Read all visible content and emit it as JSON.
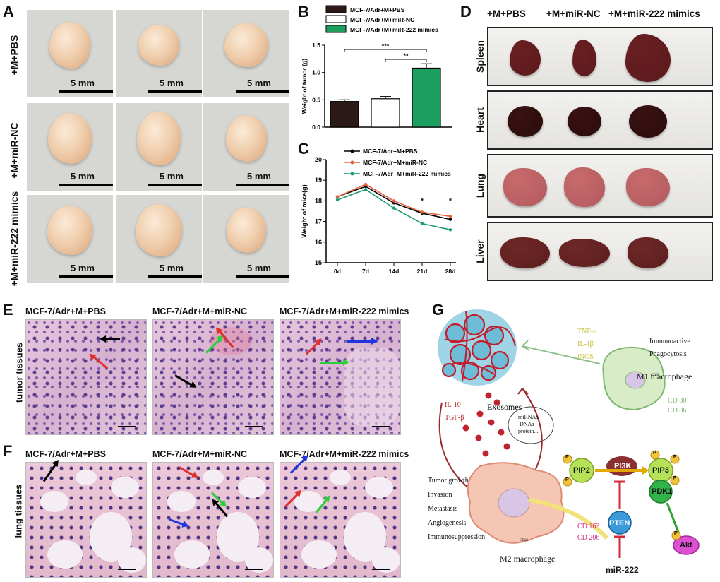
{
  "panels": {
    "a": "A",
    "b": "B",
    "c": "C",
    "d": "D",
    "e": "E",
    "f": "F",
    "g": "G"
  },
  "panel_a": {
    "rows": [
      "+M+PBS",
      "+M+miR-NC",
      "+M+miR-222 mimics"
    ],
    "scale_label": "5 mm"
  },
  "panel_b": {
    "chart_data": {
      "type": "bar",
      "categories": [
        "MCF-7/Adr+M+PBS",
        "MCF-7/Adr+M+miR-NC",
        "MCF-7/Adr+M+miR-222 mimics"
      ],
      "values": [
        0.47,
        0.52,
        1.08
      ],
      "errors": [
        0.03,
        0.04,
        0.08
      ],
      "colors": [
        "#2b1a17",
        "#ffffff",
        "#1b9e5e"
      ],
      "ylabel": "Weight of tumor (g)",
      "ylim": [
        0,
        1.5
      ],
      "yticks": [
        "0.0",
        "0.5",
        "1.0",
        "1.5"
      ],
      "significance": [
        {
          "from": 0,
          "to": 2,
          "label": "***"
        },
        {
          "from": 1,
          "to": 2,
          "label": "**"
        }
      ],
      "legend": [
        "MCF-7/Adr+M+PBS",
        "MCF-7/Adr+M+miR-NC",
        "MCF-7/Adr+M+miR-222 mimics"
      ]
    }
  },
  "panel_c": {
    "chart_data": {
      "type": "line",
      "x": [
        "0d",
        "7d",
        "14d",
        "21d",
        "28d"
      ],
      "series": [
        {
          "name": "MCF-7/Adr+M+PBS",
          "values": [
            18.2,
            18.7,
            17.9,
            17.4,
            17.1
          ],
          "color": "#000000"
        },
        {
          "name": "MCF-7/Adr+M+miR-NC",
          "values": [
            18.2,
            18.8,
            18.0,
            17.45,
            17.25
          ],
          "color": "#e8603c"
        },
        {
          "name": "MCF-7/Adr+M+miR-222 mimics",
          "values": [
            18.05,
            18.55,
            17.65,
            16.9,
            16.6
          ],
          "color": "#1a9e6a"
        }
      ],
      "ylabel": "Weight of mice(g)",
      "ylim": [
        15,
        20
      ],
      "yticks": [
        "15",
        "16",
        "17",
        "18",
        "19",
        "20"
      ],
      "annotations": [
        {
          "x": "21d",
          "label": "*"
        },
        {
          "x": "28d",
          "label": "*"
        }
      ]
    }
  },
  "panel_d": {
    "columns": [
      "+M+PBS",
      "+M+miR-NC",
      "+M+miR-222 mimics"
    ],
    "rows": [
      "Spleen",
      "Heart",
      "Lung",
      "Liver"
    ]
  },
  "panel_e": {
    "row_label": "tumor tissues",
    "titles": [
      "MCF-7/Adr+M+PBS",
      "MCF-7/Adr+M+miR-NC",
      "MCF-7/Adr+M+miR-222 mimics"
    ]
  },
  "panel_f": {
    "row_label": "lung tissues",
    "titles": [
      "MCF-7/Adr+M+PBS",
      "MCF-7/Adr+M+miR-NC",
      "MCF-7/Adr+M+miR-222 mimics"
    ]
  },
  "panel_g": {
    "m1_cytokines": [
      "TNF-α",
      "IL-1β",
      "iNOS"
    ],
    "m1_functions": [
      "Immunoactive",
      "Phagocytosis"
    ],
    "m1_label": "M1 macrophage",
    "m1_markers": [
      "CD 80",
      "CD 86"
    ],
    "m2_cytokines": [
      "IL-10",
      "TGF-β"
    ],
    "exosomes_label": "Exosomes",
    "exosome_cargo": [
      "miRNAs",
      "DNAs",
      "protein..."
    ],
    "m2_functions": [
      "Tumor growth",
      "Invasion",
      "Metastasis",
      "Angiogenesis",
      "Immunosuppression"
    ],
    "m2_label": "M2 macrophage",
    "m2_markers": [
      "CD 163",
      "CD 206"
    ],
    "cd68": "CD68",
    "pathway": {
      "pip2": "PIP2",
      "pi3k": "PI3K",
      "pip3": "PIP3",
      "pdk1": "PDK1",
      "pten": "PTEN",
      "akt": "Akt",
      "p": "P",
      "mir": "miR-222"
    }
  },
  "colors": {
    "green_bar": "#1b9e5e",
    "red": "#b22222",
    "m1_green": "#7fb870",
    "m2_pink": "#f3b9a6"
  }
}
